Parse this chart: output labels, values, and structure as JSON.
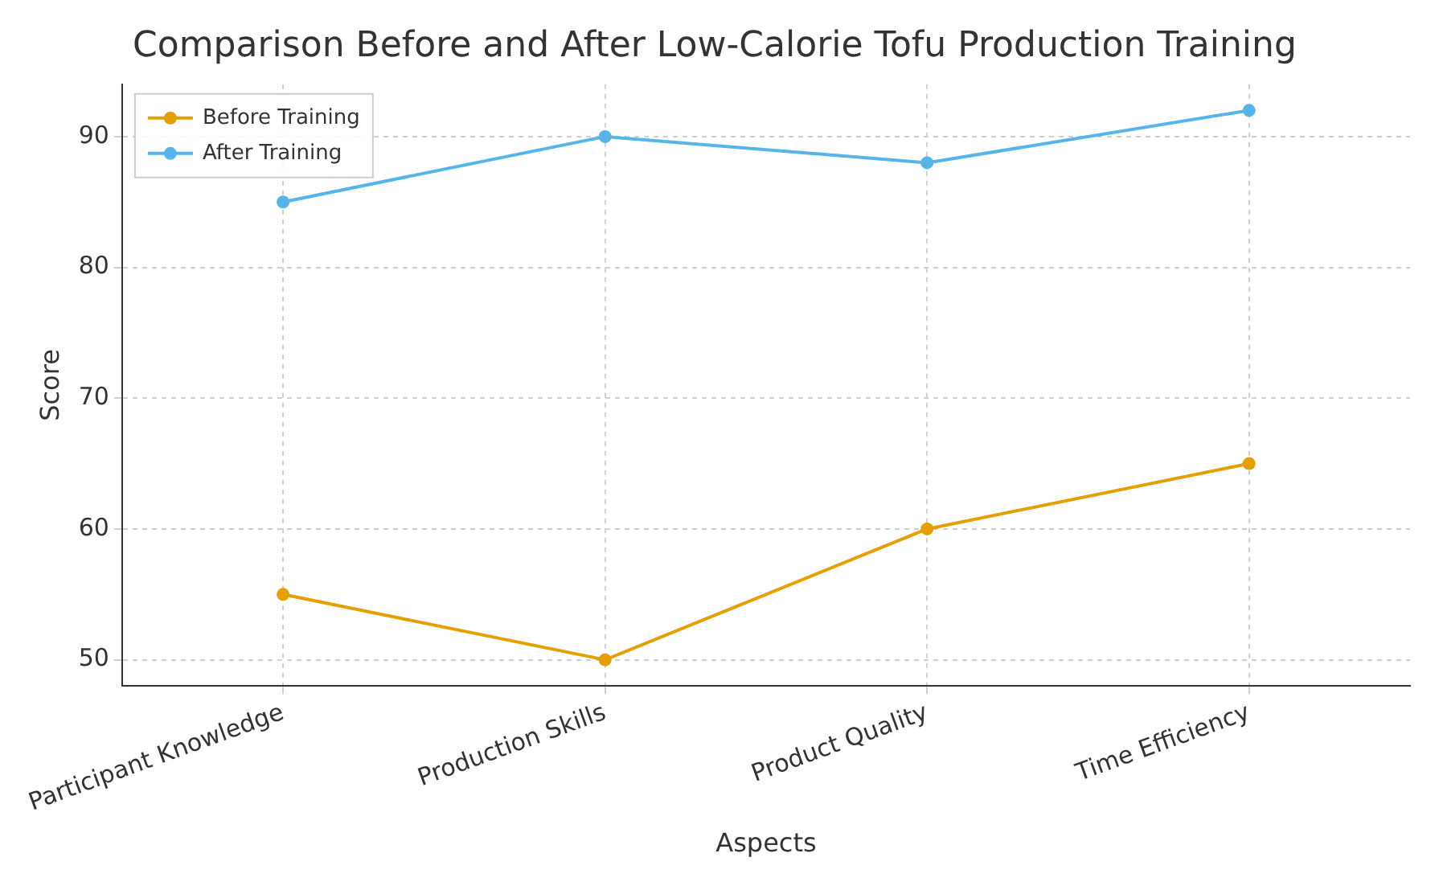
{
  "chart_data": {
    "type": "line",
    "title": "Comparison Before and After Low-Calorie Tofu Production Training",
    "xlabel": "Aspects",
    "ylabel": "Score",
    "categories": [
      "Participant Knowledge",
      "Production Skills",
      "Product Quality",
      "Time Efficiency"
    ],
    "series": [
      {
        "name": "Before Training",
        "color": "#e69f00",
        "values": [
          55,
          50,
          60,
          65
        ]
      },
      {
        "name": "After Training",
        "color": "#56b4e9",
        "values": [
          85,
          90,
          88,
          92
        ]
      }
    ],
    "ylim": [
      48,
      94
    ],
    "yticks": [
      50,
      60,
      70,
      80,
      90
    ],
    "grid": true,
    "legend": "top left",
    "marker": "circle"
  }
}
